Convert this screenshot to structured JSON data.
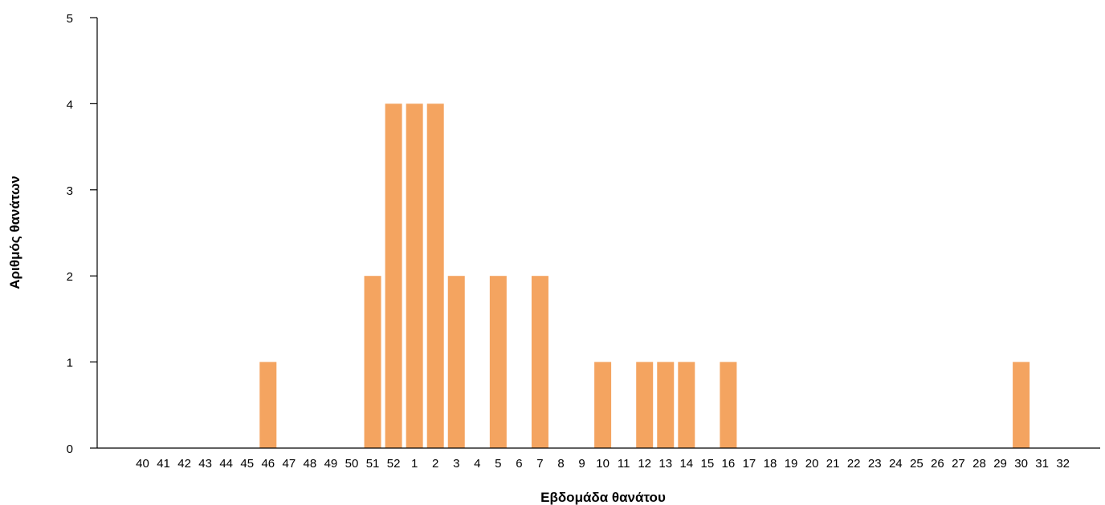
{
  "chart_data": {
    "type": "bar",
    "xlabel": "Εβδομάδα θανάτου",
    "ylabel": "Αριθμός θανάτων",
    "ylim": [
      0,
      5
    ],
    "yticks": [
      0,
      1,
      2,
      3,
      4,
      5
    ],
    "grid": false,
    "bar_color": "#F4A460",
    "categories": [
      "40",
      "41",
      "42",
      "43",
      "44",
      "45",
      "46",
      "47",
      "48",
      "49",
      "50",
      "51",
      "52",
      "1",
      "2",
      "3",
      "4",
      "5",
      "6",
      "7",
      "8",
      "9",
      "10",
      "11",
      "12",
      "13",
      "14",
      "15",
      "16",
      "17",
      "18",
      "19",
      "20",
      "21",
      "22",
      "23",
      "24",
      "25",
      "26",
      "27",
      "28",
      "29",
      "30",
      "31",
      "32"
    ],
    "values": [
      0,
      0,
      0,
      0,
      0,
      0,
      1,
      0,
      0,
      0,
      0,
      2,
      4,
      4,
      4,
      2,
      0,
      2,
      0,
      2,
      0,
      0,
      1,
      0,
      1,
      1,
      1,
      0,
      1,
      0,
      0,
      0,
      0,
      0,
      0,
      0,
      0,
      0,
      0,
      0,
      0,
      0,
      1,
      0,
      0
    ]
  }
}
